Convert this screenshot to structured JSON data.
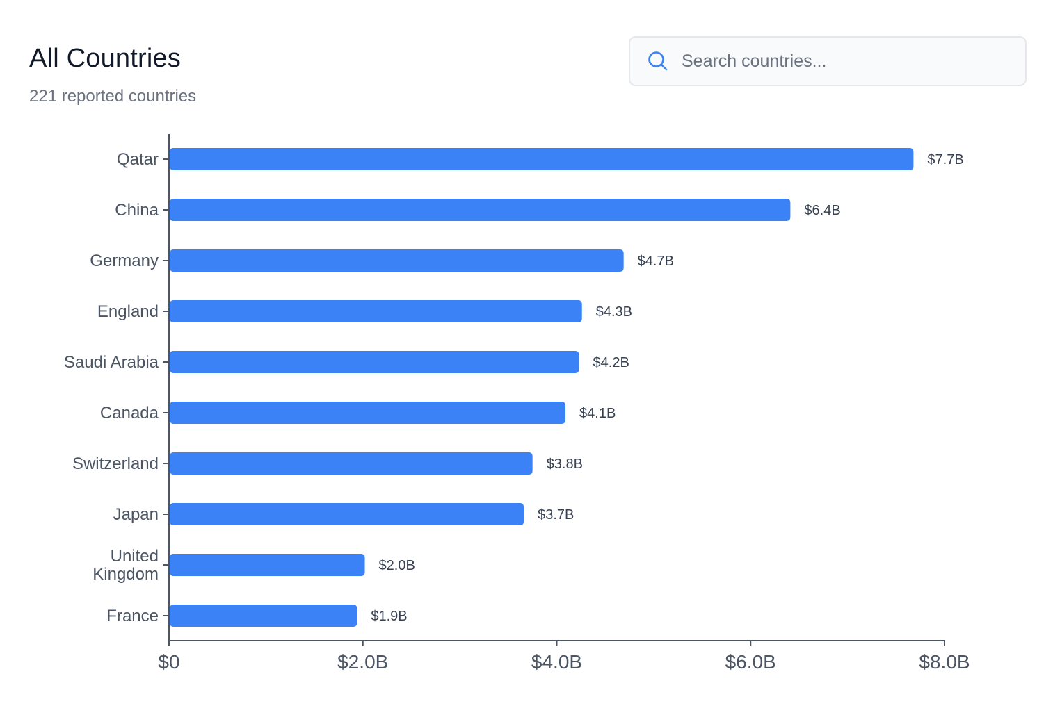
{
  "header": {
    "title": "All Countries",
    "subtitle": "221 reported countries"
  },
  "search": {
    "placeholder": "Search countries...",
    "icon": "search-icon",
    "icon_color": "#3b82f6"
  },
  "colors": {
    "bar": "#3b82f6",
    "axis": "#4b5563",
    "label": "#4b5563",
    "value_label": "#374151"
  },
  "chart_data": {
    "type": "bar",
    "orientation": "horizontal",
    "categories": [
      "Qatar",
      "China",
      "Germany",
      "England",
      "Saudi Arabia",
      "Canada",
      "Switzerland",
      "Japan",
      "United Kingdom",
      "France"
    ],
    "category_lines": [
      [
        "Qatar"
      ],
      [
        "China"
      ],
      [
        "Germany"
      ],
      [
        "England"
      ],
      [
        "Saudi Arabia"
      ],
      [
        "Canada"
      ],
      [
        "Switzerland"
      ],
      [
        "Japan"
      ],
      [
        "United",
        "Kingdom"
      ],
      [
        "France"
      ]
    ],
    "values": [
      7.68,
      6.41,
      4.69,
      4.26,
      4.23,
      4.09,
      3.75,
      3.66,
      2.02,
      1.94
    ],
    "value_labels": [
      "$7.7B",
      "$6.4B",
      "$4.7B",
      "$4.3B",
      "$4.2B",
      "$4.1B",
      "$3.8B",
      "$3.7B",
      "$2.0B",
      "$1.9B"
    ],
    "x_ticks": [
      0,
      2,
      4,
      6,
      8
    ],
    "x_tick_labels": [
      "$0",
      "$2.0B",
      "$4.0B",
      "$6.0B",
      "$8.0B"
    ],
    "xlim": [
      0,
      8
    ],
    "grid": false
  }
}
